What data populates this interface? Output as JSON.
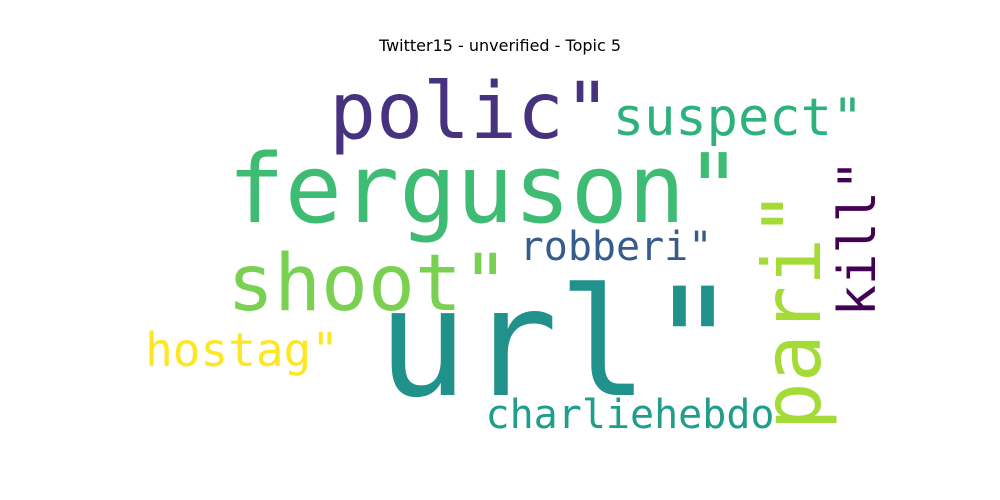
{
  "chart_data": {
    "type": "wordcloud",
    "title": "Twitter15 - unverified - Topic 5",
    "words": [
      {
        "text": "url\"",
        "color": "#21918c"
      },
      {
        "text": "ferguson\"",
        "color": "#3fbc73"
      },
      {
        "text": "polic\"",
        "color": "#46327e"
      },
      {
        "text": "shoot\"",
        "color": "#7ad151"
      },
      {
        "text": "suspect\"",
        "color": "#2db27d"
      },
      {
        "text": "pari\"",
        "color": "#a5db36"
      },
      {
        "text": "kill\"",
        "color": "#440154"
      },
      {
        "text": "robberi\"",
        "color": "#365c8d"
      },
      {
        "text": "hostag\"",
        "color": "#fde725"
      },
      {
        "text": "charliehebdo",
        "color": "#1f9e89"
      }
    ]
  }
}
